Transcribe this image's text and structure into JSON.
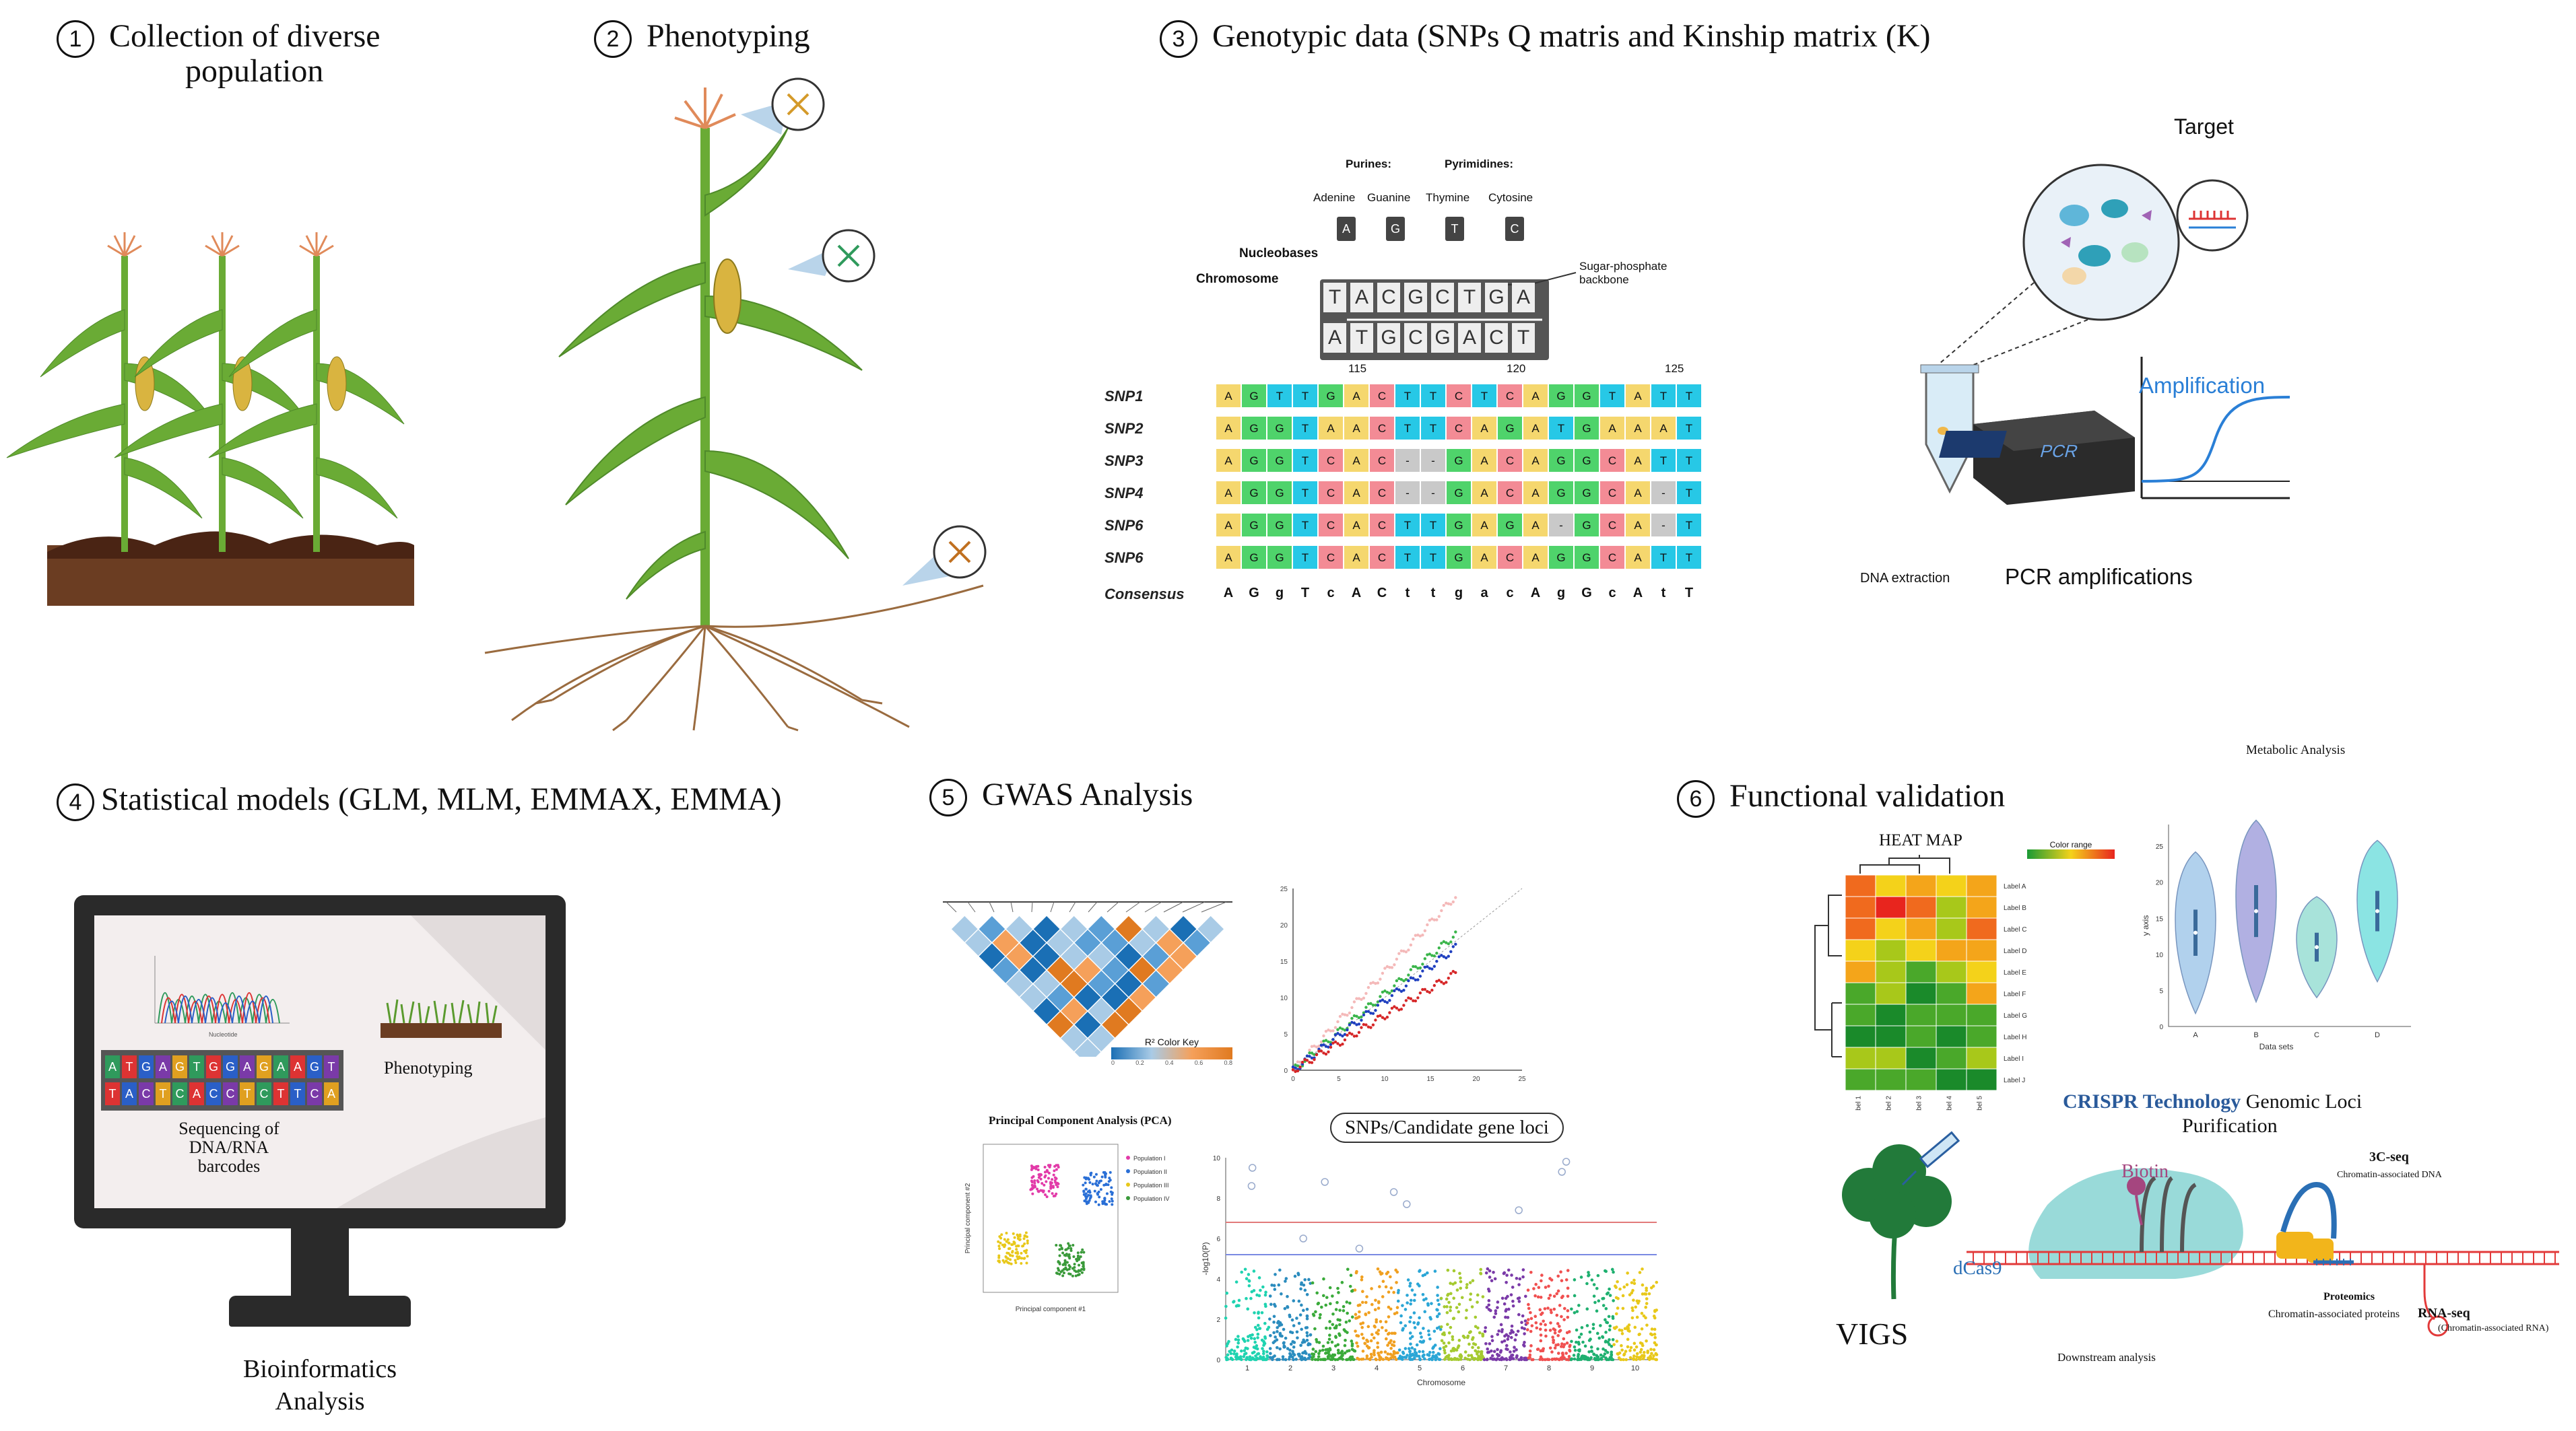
{
  "sections": {
    "s1": {
      "num": "1",
      "title_line1": "Collection of diverse",
      "title_line2": "population"
    },
    "s2": {
      "num": "2",
      "title": "Phenotyping"
    },
    "s3": {
      "num": "3",
      "title": "Genotypic data (SNPs Q matris and Kinship matrix (K)"
    },
    "s4": {
      "num": "4",
      "title": "Statistical models (GLM, MLM, EMMAX, EMMA)"
    },
    "s5": {
      "num": "5",
      "title": "GWAS Analysis"
    },
    "s6": {
      "num": "6",
      "title": "Functional validation"
    }
  },
  "dna": {
    "purines": "Purines:",
    "pyrimidines": "Pyrimidines:",
    "adenine": "Adenine",
    "guanine": "Guanine",
    "thymine": "Thymine",
    "cytosine": "Cytosine",
    "a": "A",
    "g": "G",
    "t": "T",
    "c": "C",
    "nucleobases": "Nucleobases",
    "chromosome": "Chromosome",
    "backbone_1": "Sugar-phosphate",
    "backbone_2": "backbone",
    "strand_top": [
      "T",
      "A",
      "C",
      "G",
      "C",
      "T",
      "G",
      "A"
    ],
    "strand_bottom": [
      "A",
      "T",
      "G",
      "C",
      "G",
      "A",
      "C",
      "T"
    ],
    "pos_115": "115",
    "pos_120": "120",
    "pos_125": "125"
  },
  "snp_table": {
    "rows": [
      {
        "label": "SNP1",
        "bases": [
          "A",
          "G",
          "T",
          "T",
          "G",
          "A",
          "C",
          "T",
          "T",
          "C",
          "T",
          "C",
          "A",
          "G",
          "G",
          "T",
          "A",
          "T",
          "T"
        ]
      },
      {
        "label": "SNP2",
        "bases": [
          "A",
          "G",
          "G",
          "T",
          "A",
          "A",
          "C",
          "T",
          "T",
          "C",
          "A",
          "G",
          "A",
          "T",
          "G",
          "A",
          "A",
          "A",
          "T"
        ]
      },
      {
        "label": "SNP3",
        "bases": [
          "A",
          "G",
          "G",
          "T",
          "C",
          "A",
          "C",
          "-",
          "-",
          "G",
          "A",
          "C",
          "A",
          "G",
          "G",
          "C",
          "A",
          "T",
          "T"
        ]
      },
      {
        "label": "SNP4",
        "bases": [
          "A",
          "G",
          "G",
          "T",
          "C",
          "A",
          "C",
          "-",
          "-",
          "G",
          "A",
          "C",
          "A",
          "G",
          "G",
          "C",
          "A",
          "-",
          "T"
        ]
      },
      {
        "label": "SNP6",
        "bases": [
          "A",
          "G",
          "G",
          "T",
          "C",
          "A",
          "C",
          "T",
          "T",
          "G",
          "A",
          "G",
          "A",
          "-",
          "G",
          "C",
          "A",
          "-",
          "T"
        ]
      },
      {
        "label": "SNP6",
        "bases": [
          "A",
          "G",
          "G",
          "T",
          "C",
          "A",
          "C",
          "T",
          "T",
          "G",
          "A",
          "C",
          "A",
          "G",
          "G",
          "C",
          "A",
          "T",
          "T"
        ]
      }
    ],
    "consensus_label": "Consensus",
    "consensus": [
      "A",
      "G",
      "g",
      "T",
      "c",
      "A",
      "C",
      "t",
      "t",
      "g",
      "a",
      "c",
      "A",
      "g",
      "G",
      "c",
      "A",
      "t",
      "T"
    ]
  },
  "pcr": {
    "target": "Target",
    "amplification": "Amplification",
    "pcr_label": "PCR",
    "dna_extraction": "DNA extraction",
    "pcr_amplifications": "PCR amplifications"
  },
  "bio": {
    "sequence_label": "Nucleotide",
    "seq_top": [
      "A",
      "T",
      "G",
      "A",
      "G",
      "T",
      "G",
      "G",
      "A",
      "G",
      "A",
      "A",
      "G",
      "T"
    ],
    "seq_bottom": [
      "T",
      "A",
      "C",
      "T",
      "C",
      "A",
      "C",
      "C",
      "T",
      "C",
      "T",
      "T",
      "C",
      "A"
    ],
    "phenotyping": "Phenotyping",
    "seq_line1": "Sequencing of",
    "seq_line2": "DNA/RNA",
    "seq_line3": "barcodes",
    "caption_line1": "Bioinformatics",
    "caption_line2": "Analysis"
  },
  "gwas": {
    "ld_key_title": "R² Color Key",
    "ld_key_ticks": [
      "0",
      "0.2",
      "0.4",
      "0.6",
      "0.8"
    ],
    "pca_title": "Principal Component Analysis (PCA)",
    "pca_xlabel": "Principal component #1",
    "pca_ylabel": "Principal component #2",
    "pca_legend": [
      "Population I",
      "Population II",
      "Population III",
      "Population IV"
    ],
    "snps_label": "SNPs/Candidate gene loci",
    "manhattan_ylabel": "-log10(P)",
    "manhattan_xlabel": "Chromosome",
    "chromosomes": [
      "1",
      "2",
      "3",
      "4",
      "5",
      "6",
      "7",
      "8",
      "9",
      "10"
    ],
    "qq_xticks": [
      "0",
      "5",
      "10",
      "15",
      "20",
      "25"
    ],
    "qq_yticks": [
      "0",
      "5",
      "10",
      "15",
      "20",
      "25"
    ],
    "man_yticks": [
      "0",
      "2",
      "4",
      "6",
      "8",
      "10"
    ]
  },
  "validation": {
    "heatmap_title": "HEAT MAP",
    "color_range": "Color range",
    "row_labels": [
      "Label A",
      "Label B",
      "Label C",
      "Label D",
      "Label E",
      "Label F",
      "Label G",
      "Label H",
      "Label I",
      "Label J"
    ],
    "col_labels": [
      "Label 1",
      "Label 2",
      "Label 3",
      "Label 4",
      "Label 5"
    ],
    "metabolic_title": "Metabolic Analysis",
    "violin_ylabel": "y axis",
    "violin_xlabel": "Data sets",
    "violin_cats": [
      "A",
      "B",
      "C",
      "D"
    ],
    "violin_yticks": [
      "0",
      "5",
      "10",
      "15",
      "20",
      "25"
    ],
    "crispr_title": "CRISPR Technology",
    "crispr_sub1": "Genomic Loci",
    "crispr_sub2": "Purification",
    "biotin": "Biotin",
    "dcas9": "dCas9",
    "seq3c": "3C-seq",
    "seq3c_sub": "Chromatin-associated DNA",
    "proteomics": "Proteomics",
    "proteomics_sub": "Chromatin-associated proteins",
    "rnaseq": "RNA-seq",
    "rnaseq_sub": "(Chromatin-associated RNA)",
    "downstream": "Downstream analysis",
    "vigs": "VIGS"
  },
  "colors": {
    "A": "#f5d76e",
    "G": "#4fd36b",
    "T": "#27c8e6",
    "C": "#f38b95",
    "-": "#c9c9c9",
    "plant_green": "#5a9a2e",
    "soil": "#6b3d22",
    "root": "#9a6b3f"
  }
}
